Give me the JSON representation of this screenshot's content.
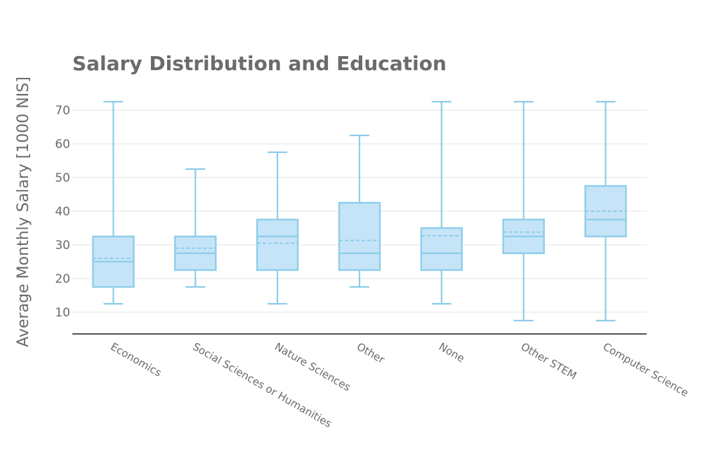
{
  "chart_data": {
    "type": "box",
    "title": "Salary Distribution and Education",
    "ylabel": "Average Monthly Salary [1000 NIS]",
    "xlabel": "",
    "ylim": [
      4,
      75
    ],
    "yticks": [
      10,
      20,
      30,
      40,
      50,
      60,
      70
    ],
    "grid": true,
    "colors": {
      "box_line": "#8ecdea",
      "box_fill": "#c6e4f8",
      "title": "#6b6b6b",
      "axis": "#555555",
      "grid": "#e3e3e3"
    },
    "categories": [
      "Economics",
      "Social Sciences or Humanities",
      "Nature Sciences",
      "Other",
      "None",
      "Other STEM",
      "Computer Science"
    ],
    "boxes": [
      {
        "min": 12.5,
        "q1": 17.5,
        "median": 25,
        "q3": 32.5,
        "max": 72.5,
        "mean": 26
      },
      {
        "min": 17.5,
        "q1": 22.5,
        "median": 27.5,
        "q3": 32.5,
        "max": 52.5,
        "mean": 29
      },
      {
        "min": 12.5,
        "q1": 22.5,
        "median": 32.5,
        "q3": 37.5,
        "max": 57.5,
        "mean": 30.5
      },
      {
        "min": 17.5,
        "q1": 22.5,
        "median": 27.5,
        "q3": 42.5,
        "max": 62.5,
        "mean": 31.3
      },
      {
        "min": 12.5,
        "q1": 22.5,
        "median": 27.5,
        "q3": 35,
        "max": 72.5,
        "mean": 32.7
      },
      {
        "min": 7.5,
        "q1": 27.5,
        "median": 32.5,
        "q3": 37.5,
        "max": 72.5,
        "mean": 33.8
      },
      {
        "min": 7.5,
        "q1": 32.5,
        "median": 37.5,
        "q3": 47.5,
        "max": 72.5,
        "mean": 40
      }
    ]
  }
}
